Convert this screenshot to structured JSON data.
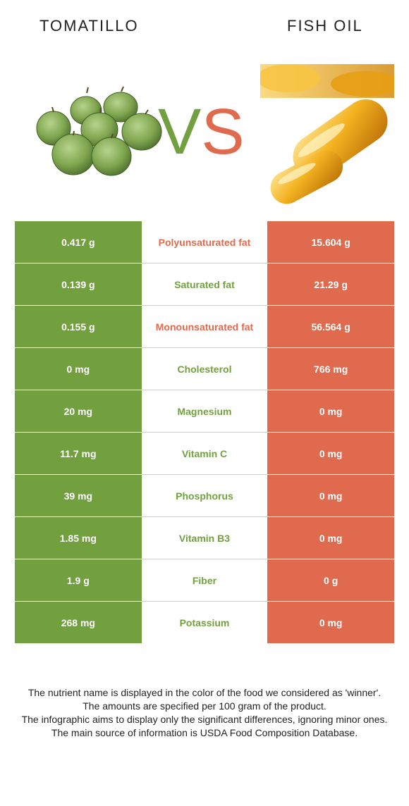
{
  "header": {
    "left_title": "TOMATILLO",
    "right_title": "FISH OIL",
    "vs_v": "V",
    "vs_s": "S"
  },
  "colors": {
    "left": "#72a03f",
    "right": "#e06a4e"
  },
  "rows": [
    {
      "left": "0.417 g",
      "nutrient": "Polyunsaturated fat",
      "right": "15.604 g",
      "winner": "right"
    },
    {
      "left": "0.139 g",
      "nutrient": "Saturated fat",
      "right": "21.29 g",
      "winner": "left"
    },
    {
      "left": "0.155 g",
      "nutrient": "Monounsaturated fat",
      "right": "56.564 g",
      "winner": "right"
    },
    {
      "left": "0 mg",
      "nutrient": "Cholesterol",
      "right": "766 mg",
      "winner": "left"
    },
    {
      "left": "20 mg",
      "nutrient": "Magnesium",
      "right": "0 mg",
      "winner": "left"
    },
    {
      "left": "11.7 mg",
      "nutrient": "Vitamin C",
      "right": "0 mg",
      "winner": "left"
    },
    {
      "left": "39 mg",
      "nutrient": "Phosphorus",
      "right": "0 mg",
      "winner": "left"
    },
    {
      "left": "1.85 mg",
      "nutrient": "Vitamin B3",
      "right": "0 mg",
      "winner": "left"
    },
    {
      "left": "1.9 g",
      "nutrient": "Fiber",
      "right": "0 g",
      "winner": "left"
    },
    {
      "left": "268 mg",
      "nutrient": "Potassium",
      "right": "0 mg",
      "winner": "left"
    }
  ],
  "footer": [
    "The nutrient name is displayed in the color of the food we considered as 'winner'.",
    "The amounts are specified per 100 gram of the product.",
    "The infographic aims to display only the significant differences, ignoring minor ones.",
    "The main source of information is USDA Food Composition Database."
  ]
}
